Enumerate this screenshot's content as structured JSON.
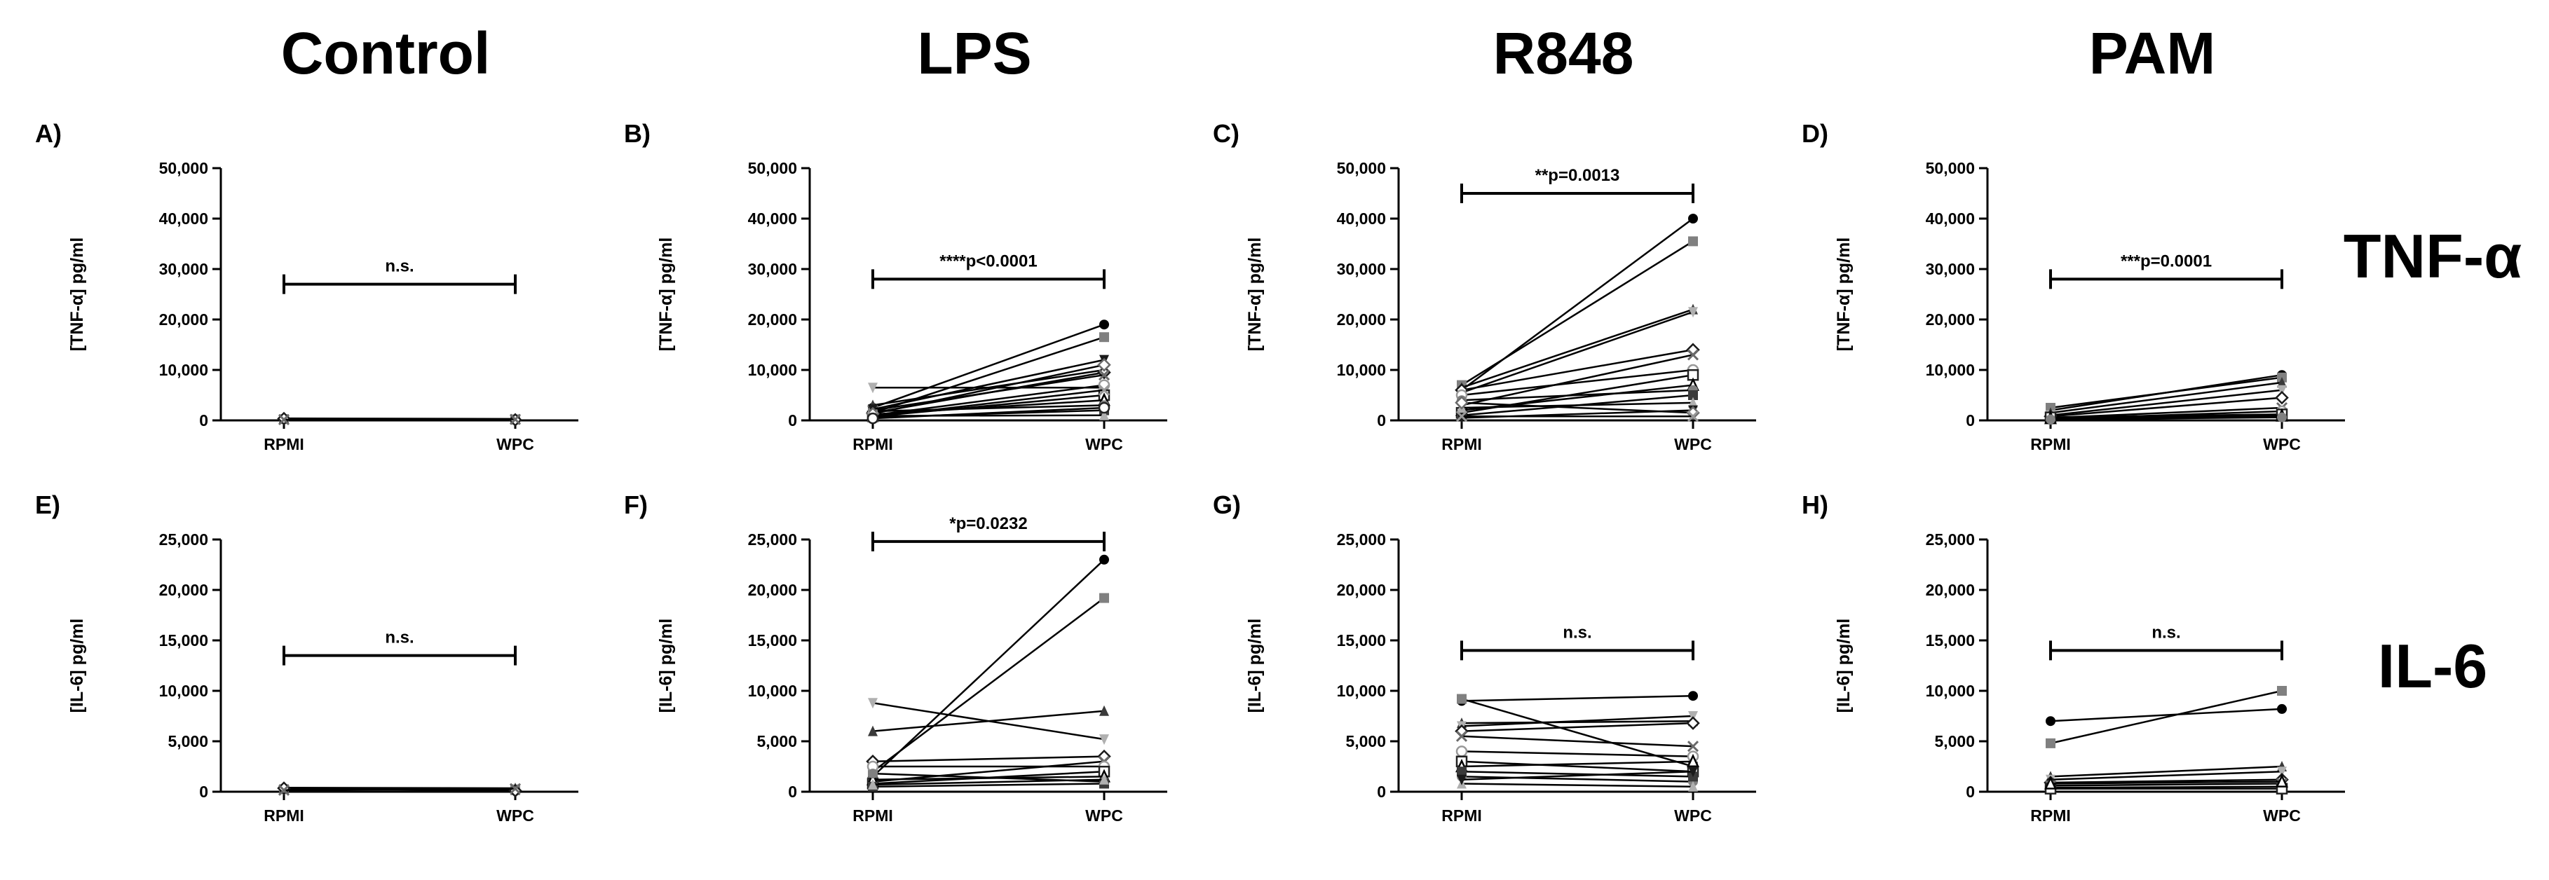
{
  "columns": [
    "Control",
    "LPS",
    "R848",
    "PAM"
  ],
  "rows": [
    "TNF-α",
    "IL-6"
  ],
  "chart_data": [
    {
      "id": "A",
      "panel": "A)",
      "type": "line",
      "ylabel": "[TNF-α] pg/ml",
      "categories": [
        "RPMI",
        "WPC"
      ],
      "ylim": [
        0,
        50000
      ],
      "yticks": [
        "0",
        "10,000",
        "20,000",
        "30,000",
        "40,000",
        "50,000"
      ],
      "annotation": "n.s.",
      "bracket_y": 27000,
      "series": [
        [
          300,
          200
        ],
        [
          250,
          150
        ],
        [
          400,
          300
        ],
        [
          200,
          250
        ],
        [
          350,
          100
        ],
        [
          150,
          200
        ]
      ]
    },
    {
      "id": "B",
      "panel": "B)",
      "type": "line",
      "ylabel": "[TNF-α] pg/ml",
      "categories": [
        "RPMI",
        "WPC"
      ],
      "ylim": [
        0,
        50000
      ],
      "yticks": [
        "0",
        "10,000",
        "20,000",
        "30,000",
        "40,000",
        "50,000"
      ],
      "annotation": "****p<0.0001",
      "bracket_y": 28000,
      "series": [
        [
          2500,
          19000
        ],
        [
          1500,
          16500
        ],
        [
          3000,
          10000
        ],
        [
          6500,
          6500
        ],
        [
          1500,
          9500
        ],
        [
          2000,
          9000
        ],
        [
          1000,
          7000
        ],
        [
          800,
          5000
        ],
        [
          1200,
          4000
        ],
        [
          1800,
          3000
        ],
        [
          600,
          2000
        ],
        [
          900,
          1000
        ],
        [
          2200,
          12000
        ],
        [
          1300,
          11000
        ],
        [
          700,
          6000
        ],
        [
          400,
          2500
        ]
      ]
    },
    {
      "id": "C",
      "panel": "C)",
      "type": "line",
      "ylabel": "[TNF-α] pg/ml",
      "categories": [
        "RPMI",
        "WPC"
      ],
      "ylim": [
        0,
        50000
      ],
      "yticks": [
        "0",
        "10,000",
        "20,000",
        "30,000",
        "40,000",
        "50,000"
      ],
      "annotation": "**p=0.0013",
      "bracket_y": 45000,
      "series": [
        [
          6000,
          40000
        ],
        [
          7000,
          35500
        ],
        [
          6500,
          22000
        ],
        [
          5500,
          21500
        ],
        [
          6000,
          14000
        ],
        [
          3000,
          13000
        ],
        [
          5000,
          10000
        ],
        [
          1500,
          9000
        ],
        [
          2000,
          7000
        ],
        [
          4000,
          6000
        ],
        [
          1000,
          5000
        ],
        [
          2500,
          3500
        ],
        [
          500,
          2000
        ],
        [
          3500,
          1500
        ],
        [
          800,
          800
        ]
      ]
    },
    {
      "id": "D",
      "panel": "D)",
      "type": "line",
      "ylabel": "[TNF-α] pg/ml",
      "categories": [
        "RPMI",
        "WPC"
      ],
      "ylim": [
        0,
        50000
      ],
      "yticks": [
        "0",
        "10,000",
        "20,000",
        "30,000",
        "40,000",
        "50,000"
      ],
      "annotation": "***p=0.0001",
      "bracket_y": 28000,
      "series": [
        [
          2000,
          9000
        ],
        [
          2500,
          8500
        ],
        [
          1500,
          7500
        ],
        [
          1000,
          6000
        ],
        [
          800,
          4500
        ],
        [
          500,
          2500
        ],
        [
          300,
          1800
        ],
        [
          600,
          1200
        ],
        [
          400,
          900
        ],
        [
          200,
          600
        ]
      ]
    },
    {
      "id": "E",
      "panel": "E)",
      "type": "line",
      "ylabel": "[IL-6] pg/ml",
      "categories": [
        "RPMI",
        "WPC"
      ],
      "ylim": [
        0,
        25000
      ],
      "yticks": [
        "0",
        "5,000",
        "10,000",
        "15,000",
        "20,000",
        "25,000"
      ],
      "annotation": "n.s.",
      "bracket_y": 13500,
      "series": [
        [
          300,
          200
        ],
        [
          250,
          150
        ],
        [
          400,
          350
        ],
        [
          200,
          250
        ],
        [
          350,
          100
        ],
        [
          150,
          300
        ]
      ]
    },
    {
      "id": "F",
      "panel": "F)",
      "type": "line",
      "ylabel": "[IL-6] pg/ml",
      "categories": [
        "RPMI",
        "WPC"
      ],
      "ylim": [
        0,
        25000
      ],
      "yticks": [
        "0",
        "5,000",
        "10,000",
        "15,000",
        "20,000",
        "25,000"
      ],
      "annotation": "*p=0.0232",
      "bracket_y": 24800,
      "series": [
        [
          1500,
          23000
        ],
        [
          2000,
          19200
        ],
        [
          6000,
          8000
        ],
        [
          8800,
          5200
        ],
        [
          3000,
          3500
        ],
        [
          1000,
          3000
        ],
        [
          2500,
          2500
        ],
        [
          800,
          2000
        ],
        [
          1200,
          1500
        ],
        [
          1800,
          1000
        ],
        [
          500,
          800
        ],
        [
          700,
          1200
        ]
      ]
    },
    {
      "id": "G",
      "panel": "G)",
      "type": "line",
      "ylabel": "[IL-6] pg/ml",
      "categories": [
        "RPMI",
        "WPC"
      ],
      "ylim": [
        0,
        25000
      ],
      "yticks": [
        "0",
        "5,000",
        "10,000",
        "15,000",
        "20,000",
        "25,000"
      ],
      "annotation": "n.s.",
      "bracket_y": 14000,
      "series": [
        [
          9000,
          9500
        ],
        [
          9200,
          2500
        ],
        [
          6800,
          7000
        ],
        [
          6500,
          7500
        ],
        [
          6000,
          6800
        ],
        [
          5500,
          4500
        ],
        [
          4000,
          3500
        ],
        [
          3000,
          2000
        ],
        [
          2500,
          3000
        ],
        [
          1500,
          1000
        ],
        [
          2000,
          1500
        ],
        [
          800,
          500
        ],
        [
          1200,
          2000
        ]
      ]
    },
    {
      "id": "H",
      "panel": "H)",
      "type": "line",
      "ylabel": "[IL-6] pg/ml",
      "categories": [
        "RPMI",
        "WPC"
      ],
      "ylim": [
        0,
        25000
      ],
      "yticks": [
        "0",
        "5,000",
        "10,000",
        "15,000",
        "20,000",
        "25,000"
      ],
      "annotation": "n.s.",
      "bracket_y": 14000,
      "series": [
        [
          7000,
          8200
        ],
        [
          4800,
          10000
        ],
        [
          1500,
          2500
        ],
        [
          1200,
          2000
        ],
        [
          900,
          1200
        ],
        [
          600,
          800
        ],
        [
          400,
          500
        ],
        [
          300,
          300
        ],
        [
          800,
          1000
        ]
      ]
    }
  ]
}
